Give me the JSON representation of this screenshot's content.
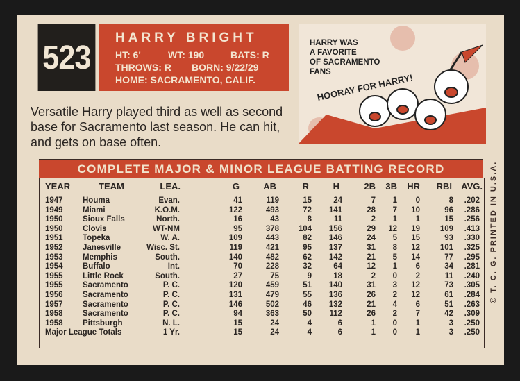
{
  "card": {
    "number": "523",
    "name": "HARRY BRIGHT",
    "height": "HT: 6'",
    "weight": "WT: 190",
    "bats": "BATS: R",
    "throws": "THROWS: R",
    "born": "BORN: 9/22/29",
    "home": "HOME: SACRAMENTO, CALIF.",
    "cartoon": {
      "caption": [
        "HARRY WAS",
        "A FAVORITE",
        "OF SACRAMENTO",
        "FANS"
      ],
      "cheer": "HOORAY FOR HARRY!"
    },
    "bio": "Versatile Harry played third as well as second base for Sacramento last season. He can hit, and gets on base often.",
    "side_text": "© T. C. G.   PRINTED IN U.S.A."
  },
  "table": {
    "title": "COMPLETE MAJOR & MINOR LEAGUE BATTING RECORD",
    "columns": [
      "YEAR",
      "TEAM",
      "LEA.",
      "G",
      "AB",
      "R",
      "H",
      "2B",
      "3B",
      "HR",
      "RBI",
      "AVG."
    ],
    "rows": [
      [
        "1947",
        "Houma",
        "Evan.",
        "41",
        "119",
        "15",
        "24",
        "7",
        "1",
        "0",
        "8",
        ".202"
      ],
      [
        "1949",
        "Miami",
        "K.O.M.",
        "122",
        "493",
        "72",
        "141",
        "28",
        "7",
        "10",
        "96",
        ".286"
      ],
      [
        "1950",
        "Sioux Falls",
        "North.",
        "16",
        "43",
        "8",
        "11",
        "2",
        "1",
        "1",
        "15",
        ".256"
      ],
      [
        "1950",
        "Clovis",
        "WT-NM",
        "95",
        "378",
        "104",
        "156",
        "29",
        "12",
        "19",
        "109",
        ".413"
      ],
      [
        "1951",
        "Topeka",
        "W. A.",
        "109",
        "443",
        "82",
        "146",
        "24",
        "5",
        "15",
        "93",
        ".330"
      ],
      [
        "1952",
        "Janesville",
        "Wisc. St.",
        "119",
        "421",
        "95",
        "137",
        "31",
        "8",
        "12",
        "101",
        ".325"
      ],
      [
        "1953",
        "Memphis",
        "South.",
        "140",
        "482",
        "62",
        "142",
        "21",
        "5",
        "14",
        "77",
        ".295"
      ],
      [
        "1954",
        "Buffalo",
        "Int.",
        "70",
        "228",
        "32",
        "64",
        "12",
        "1",
        "6",
        "34",
        ".281"
      ],
      [
        "1955",
        "Little Rock",
        "South.",
        "27",
        "75",
        "9",
        "18",
        "2",
        "0",
        "2",
        "11",
        ".240"
      ],
      [
        "1955",
        "Sacramento",
        "P. C.",
        "120",
        "459",
        "51",
        "140",
        "31",
        "3",
        "12",
        "73",
        ".305"
      ],
      [
        "1956",
        "Sacramento",
        "P. C.",
        "131",
        "479",
        "55",
        "136",
        "26",
        "2",
        "12",
        "61",
        ".284"
      ],
      [
        "1957",
        "Sacramento",
        "P. C.",
        "146",
        "502",
        "46",
        "132",
        "21",
        "4",
        "6",
        "51",
        ".263"
      ],
      [
        "1958",
        "Sacramento",
        "P. C.",
        "94",
        "363",
        "50",
        "112",
        "26",
        "2",
        "7",
        "42",
        ".309"
      ],
      [
        "1958",
        "Pittsburgh",
        "N. L.",
        "15",
        "24",
        "4",
        "6",
        "1",
        "0",
        "1",
        "3",
        ".250"
      ]
    ],
    "totals": [
      "Major League Totals",
      "1 Yr.",
      "15",
      "24",
      "4",
      "6",
      "1",
      "0",
      "1",
      "3",
      ".250"
    ]
  }
}
